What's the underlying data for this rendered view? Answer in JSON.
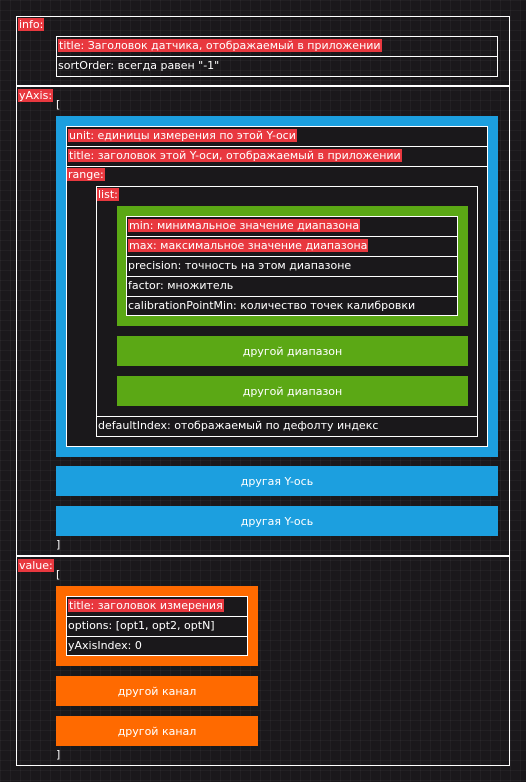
{
  "info": {
    "key": "info:",
    "title_field": "title: Заголовок датчика, отображаемый в приложении",
    "sort_field": "sortOrder: всегда равен \"-1\""
  },
  "yaxis": {
    "key": "yAxis:",
    "open_bracket": "[",
    "close_bracket": "]",
    "unit_field": "unit: единицы измерения по этой Y-оси",
    "title_field": "title: заголовок этой Y-оси, отображаемый в приложении",
    "range_key": "range:",
    "list_key": "list:",
    "min_field": "min: минимальное значение диапазона",
    "max_field": "max: максимальное значение диапазона",
    "precision_field": "precision: точность на этом диапазоне",
    "factor_field": "factor: множитель",
    "calibration_field": "calibrationPointMin: количество точек калибровки",
    "other_range": "другой диапазон",
    "default_index_field": "defaultIndex: отображаемый по дефолту индекс",
    "other_axis": "другая Y-ось"
  },
  "value": {
    "key": "value:",
    "open_bracket": "[",
    "close_bracket": "]",
    "title_field": "title: заголовок измерения",
    "options_field": "options: [opt1, opt2, optN]",
    "yaxis_index_field": "yAxisIndex: 0",
    "other_channel": "другой канал"
  },
  "colors": {
    "background": "#1a181b",
    "highlight": "#e8383f",
    "axis_blue": "#1c9fdf",
    "range_green": "#5ba815",
    "channel_orange": "#ff6a00",
    "line": "#ffffff"
  }
}
